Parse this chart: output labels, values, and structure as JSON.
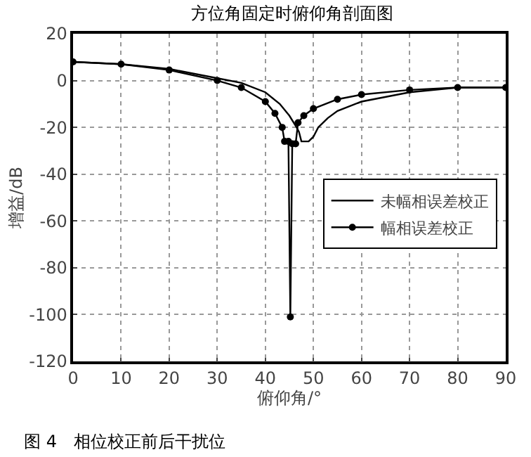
{
  "chart_data": {
    "type": "line",
    "title": "方位角固定时俯仰角剖面图",
    "xlabel": "俯仰角/°",
    "ylabel": "增益/dB",
    "annotations": [
      "图 4　相位校正前后干扰位"
    ],
    "xlim": [
      0,
      90
    ],
    "xticks": [
      0,
      10,
      20,
      30,
      40,
      50,
      60,
      70,
      80,
      90
    ],
    "ylim": [
      -120,
      20
    ],
    "yticks": [
      -120,
      -100,
      -80,
      -60,
      -40,
      -20,
      0,
      20
    ],
    "grid": true,
    "legend": "right",
    "line_style": "solid",
    "series": [
      {
        "name": "未幅相误差校正",
        "color": "#000000",
        "marker": "none",
        "x": [
          0,
          10,
          20,
          30,
          35,
          40,
          43,
          45,
          46.5,
          47,
          47.5,
          49,
          50,
          51,
          53,
          55,
          60,
          70,
          80,
          90
        ],
        "values": [
          8,
          7,
          5,
          1,
          -1,
          -5,
          -10,
          -15,
          -20,
          -22,
          -26,
          -26,
          -24,
          -20,
          -16,
          -13,
          -9,
          -5,
          -3,
          -3
        ]
      },
      {
        "name": "幅相误差校正",
        "color": "#000000",
        "marker": "circle",
        "x": [
          0,
          10,
          20,
          30,
          35,
          40,
          42,
          43.5,
          44,
          44.8,
          45.2,
          45.6,
          46.3,
          46.8,
          48,
          50,
          55,
          60,
          70,
          80,
          90
        ],
        "values": [
          8,
          7,
          4.5,
          0,
          -3,
          -9,
          -14,
          -20,
          -26,
          -26,
          -101,
          -27,
          -27,
          -18,
          -15,
          -12,
          -8,
          -6,
          -4,
          -3,
          -3
        ]
      }
    ]
  }
}
